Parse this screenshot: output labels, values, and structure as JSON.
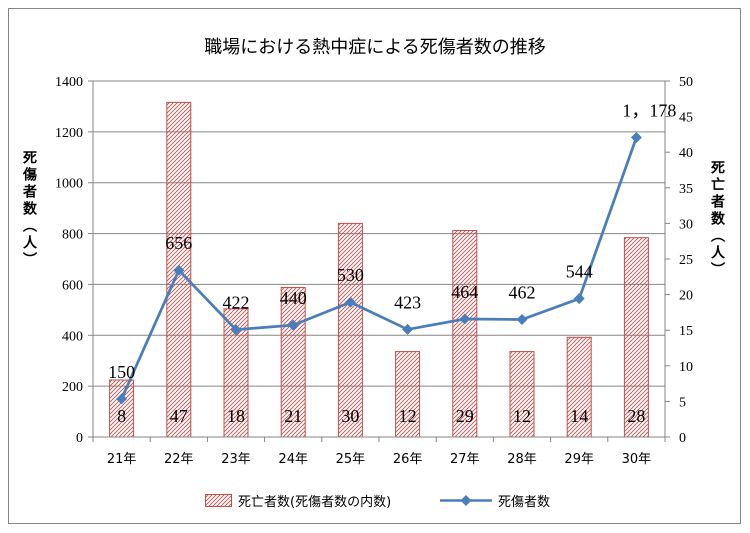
{
  "chart_data": {
    "type": "bar",
    "title": "職場における熱中症による死傷者数の推移",
    "categories": [
      "21年",
      "22年",
      "23年",
      "24年",
      "25年",
      "26年",
      "27年",
      "28年",
      "29年",
      "30年"
    ],
    "series": [
      {
        "name": "死亡者数(死傷者数の内数)",
        "type": "bar",
        "axis": "right",
        "fill": "diagonal-hatch",
        "color": "#c0504d",
        "values": [
          8,
          47,
          18,
          21,
          30,
          12,
          29,
          12,
          14,
          28
        ],
        "data_labels": [
          "8",
          "47",
          "18",
          "21",
          "30",
          "12",
          "29",
          "12",
          "14",
          "28"
        ]
      },
      {
        "name": "死傷者数",
        "type": "line",
        "axis": "left",
        "marker": "diamond",
        "color": "#4a7ebb",
        "values": [
          150,
          656,
          422,
          440,
          530,
          423,
          464,
          462,
          544,
          1178
        ],
        "data_labels": [
          "150",
          "656",
          "422",
          "440",
          "530",
          "423",
          "464",
          "462",
          "544",
          "1，178"
        ]
      }
    ],
    "y_left": {
      "label": "死傷者数（人）",
      "ylim": [
        0,
        1400
      ],
      "ticks": [
        0,
        200,
        400,
        600,
        800,
        1000,
        1200,
        1400
      ]
    },
    "y_right": {
      "label": "死亡者数（人）",
      "ylim": [
        0,
        50
      ],
      "ticks": [
        0,
        5,
        10,
        15,
        20,
        25,
        30,
        35,
        40,
        45,
        50
      ]
    },
    "grid": true,
    "grid_color": "#868686",
    "legend": "bottom"
  }
}
